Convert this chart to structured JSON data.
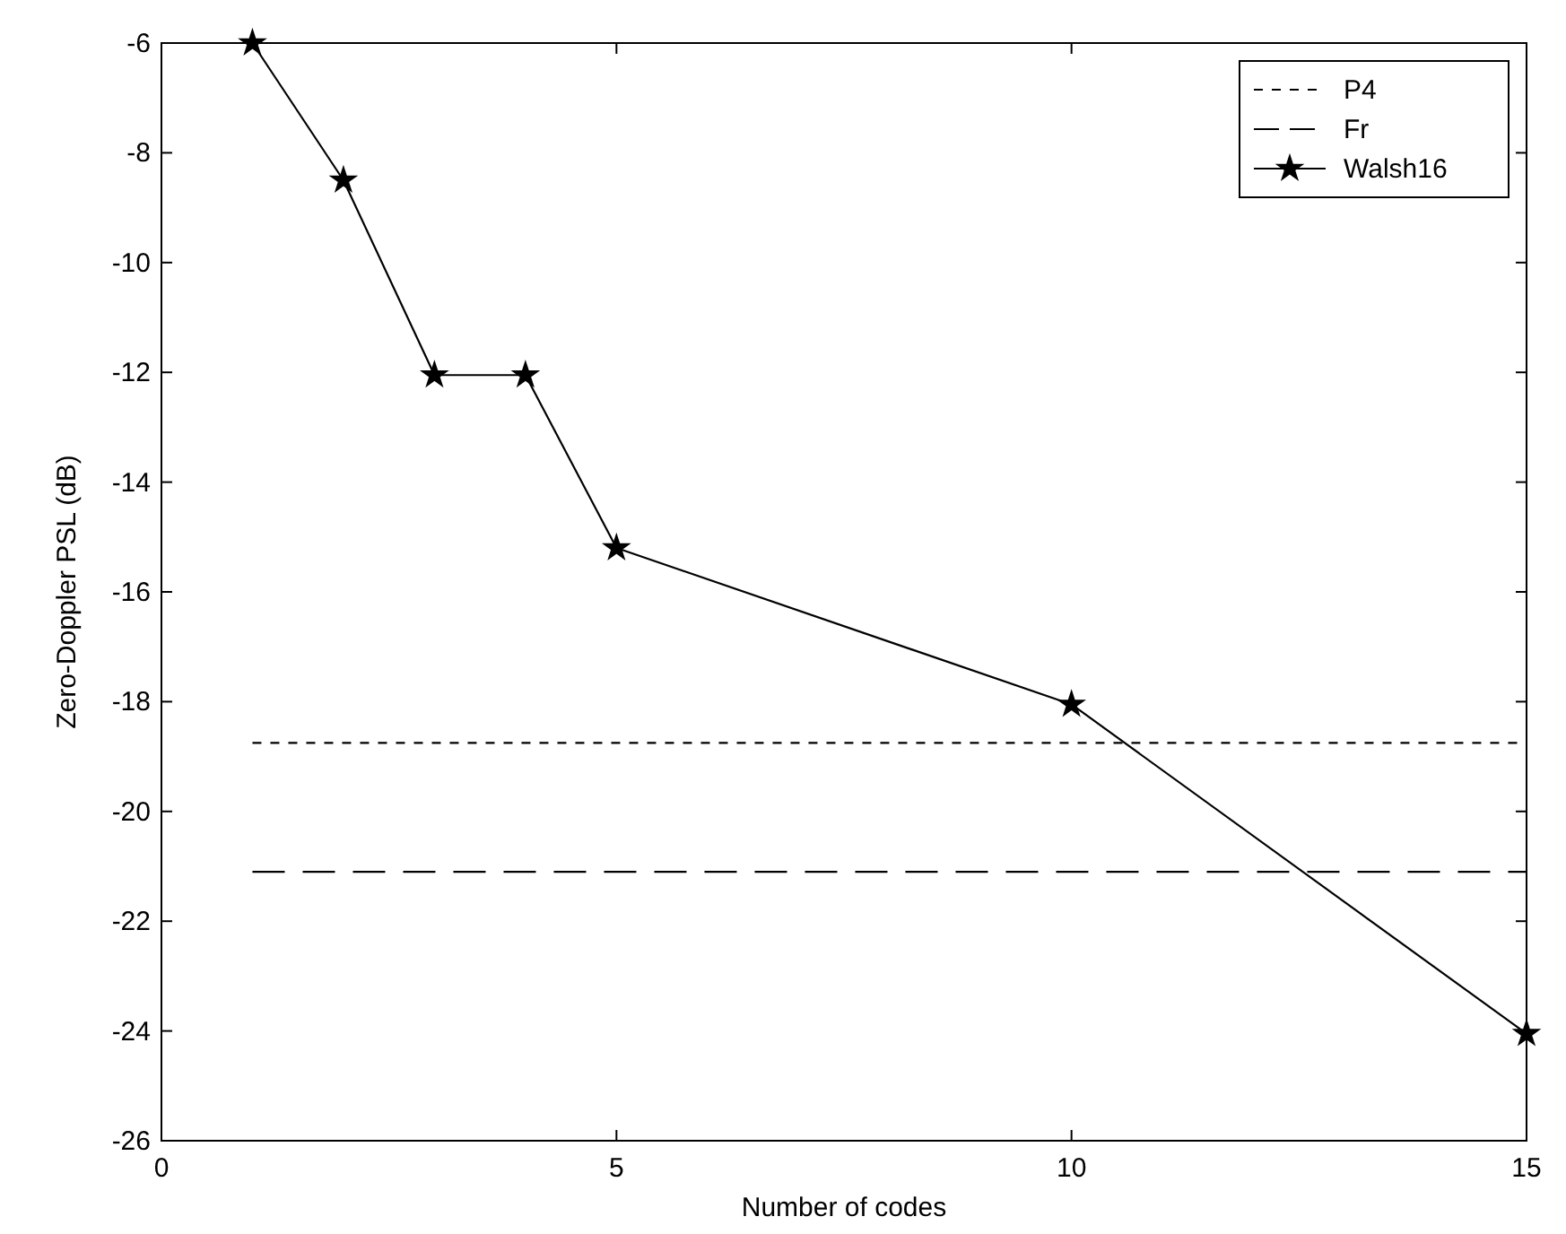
{
  "chart_data": {
    "type": "line",
    "xlabel": "Number of codes",
    "ylabel": "Zero-Doppler PSL (dB)",
    "xlim": [
      0,
      15
    ],
    "xticks": [
      0,
      5,
      10,
      15
    ],
    "ylim": [
      -26,
      -6
    ],
    "yticks": [
      -26,
      -24,
      -22,
      -20,
      -18,
      -16,
      -14,
      -12,
      -10,
      -8,
      -6
    ],
    "grid": false,
    "legend": "top right",
    "series": [
      {
        "name": "P4",
        "color": "#000000",
        "x": [
          1,
          15
        ],
        "values": [
          -18.75,
          -18.75
        ],
        "line_style": "dotted",
        "marker": "none"
      },
      {
        "name": "Fr",
        "color": "#000000",
        "x": [
          1,
          15
        ],
        "values": [
          -21.1,
          -21.1
        ],
        "line_style": "dashed",
        "marker": "none"
      },
      {
        "name": "Walsh16",
        "color": "#000000",
        "x": [
          1,
          2,
          3,
          4,
          5,
          10,
          15
        ],
        "values": [
          -6,
          -8.5,
          -12.05,
          -12.05,
          -15.2,
          -18.05,
          -24.05
        ],
        "line_style": "solid",
        "marker": "star"
      }
    ]
  }
}
